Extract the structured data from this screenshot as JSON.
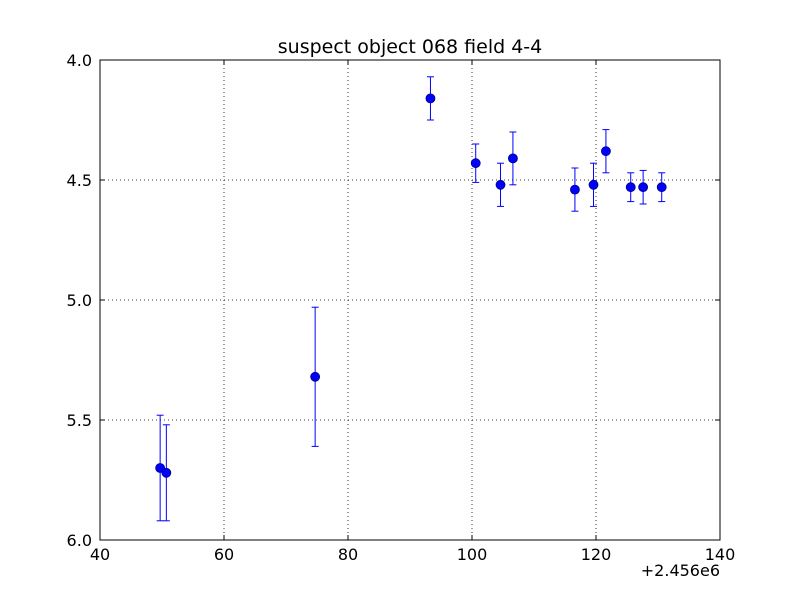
{
  "chart_data": {
    "type": "scatter",
    "title": "suspect object 068 field 4-4",
    "xlabel": "",
    "ylabel": "",
    "x_offset_label": "+2.456e6",
    "xlim": [
      40,
      140
    ],
    "ylim": [
      6.0,
      4.0
    ],
    "y_inverted": true,
    "grid": true,
    "x_ticks": [
      40,
      60,
      80,
      100,
      120,
      140
    ],
    "x_tick_labels": [
      "40",
      "60",
      "80",
      "100",
      "120",
      "140"
    ],
    "y_ticks": [
      4.0,
      4.5,
      5.0,
      5.5,
      6.0
    ],
    "y_tick_labels": [
      "4.0",
      "4.5",
      "5.0",
      "5.5",
      "6.0"
    ],
    "series": [
      {
        "color": "#0000ff",
        "points": [
          {
            "x": 49.7,
            "y": 5.7,
            "err": 0.22
          },
          {
            "x": 50.7,
            "y": 5.72,
            "err": 0.2
          },
          {
            "x": 74.7,
            "y": 5.32,
            "err": 0.29
          },
          {
            "x": 93.3,
            "y": 4.16,
            "err": 0.09
          },
          {
            "x": 100.6,
            "y": 4.43,
            "err": 0.08
          },
          {
            "x": 104.6,
            "y": 4.52,
            "err": 0.09
          },
          {
            "x": 106.6,
            "y": 4.41,
            "err": 0.11
          },
          {
            "x": 116.6,
            "y": 4.54,
            "err": 0.09
          },
          {
            "x": 119.6,
            "y": 4.52,
            "err": 0.09
          },
          {
            "x": 121.6,
            "y": 4.38,
            "err": 0.09
          },
          {
            "x": 125.6,
            "y": 4.53,
            "err": 0.06
          },
          {
            "x": 127.6,
            "y": 4.53,
            "err": 0.07
          },
          {
            "x": 130.6,
            "y": 4.53,
            "err": 0.06
          }
        ]
      }
    ]
  }
}
